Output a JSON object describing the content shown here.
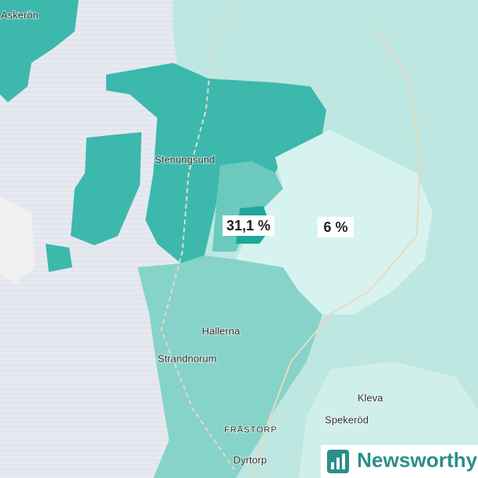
{
  "places": [
    {
      "label": "Askerön"
    },
    {
      "label": "Stenungsund"
    },
    {
      "label": "Hallerna"
    },
    {
      "label": "Strandnorum"
    },
    {
      "label": "Kleva"
    },
    {
      "label": "Spekeröd"
    },
    {
      "label": "FRÅSTORP"
    },
    {
      "label": "Dyrtorp"
    }
  ],
  "regions": [
    {
      "label": "31,1 %"
    },
    {
      "label": "6 %"
    }
  ],
  "brand": "Newsworthy"
}
